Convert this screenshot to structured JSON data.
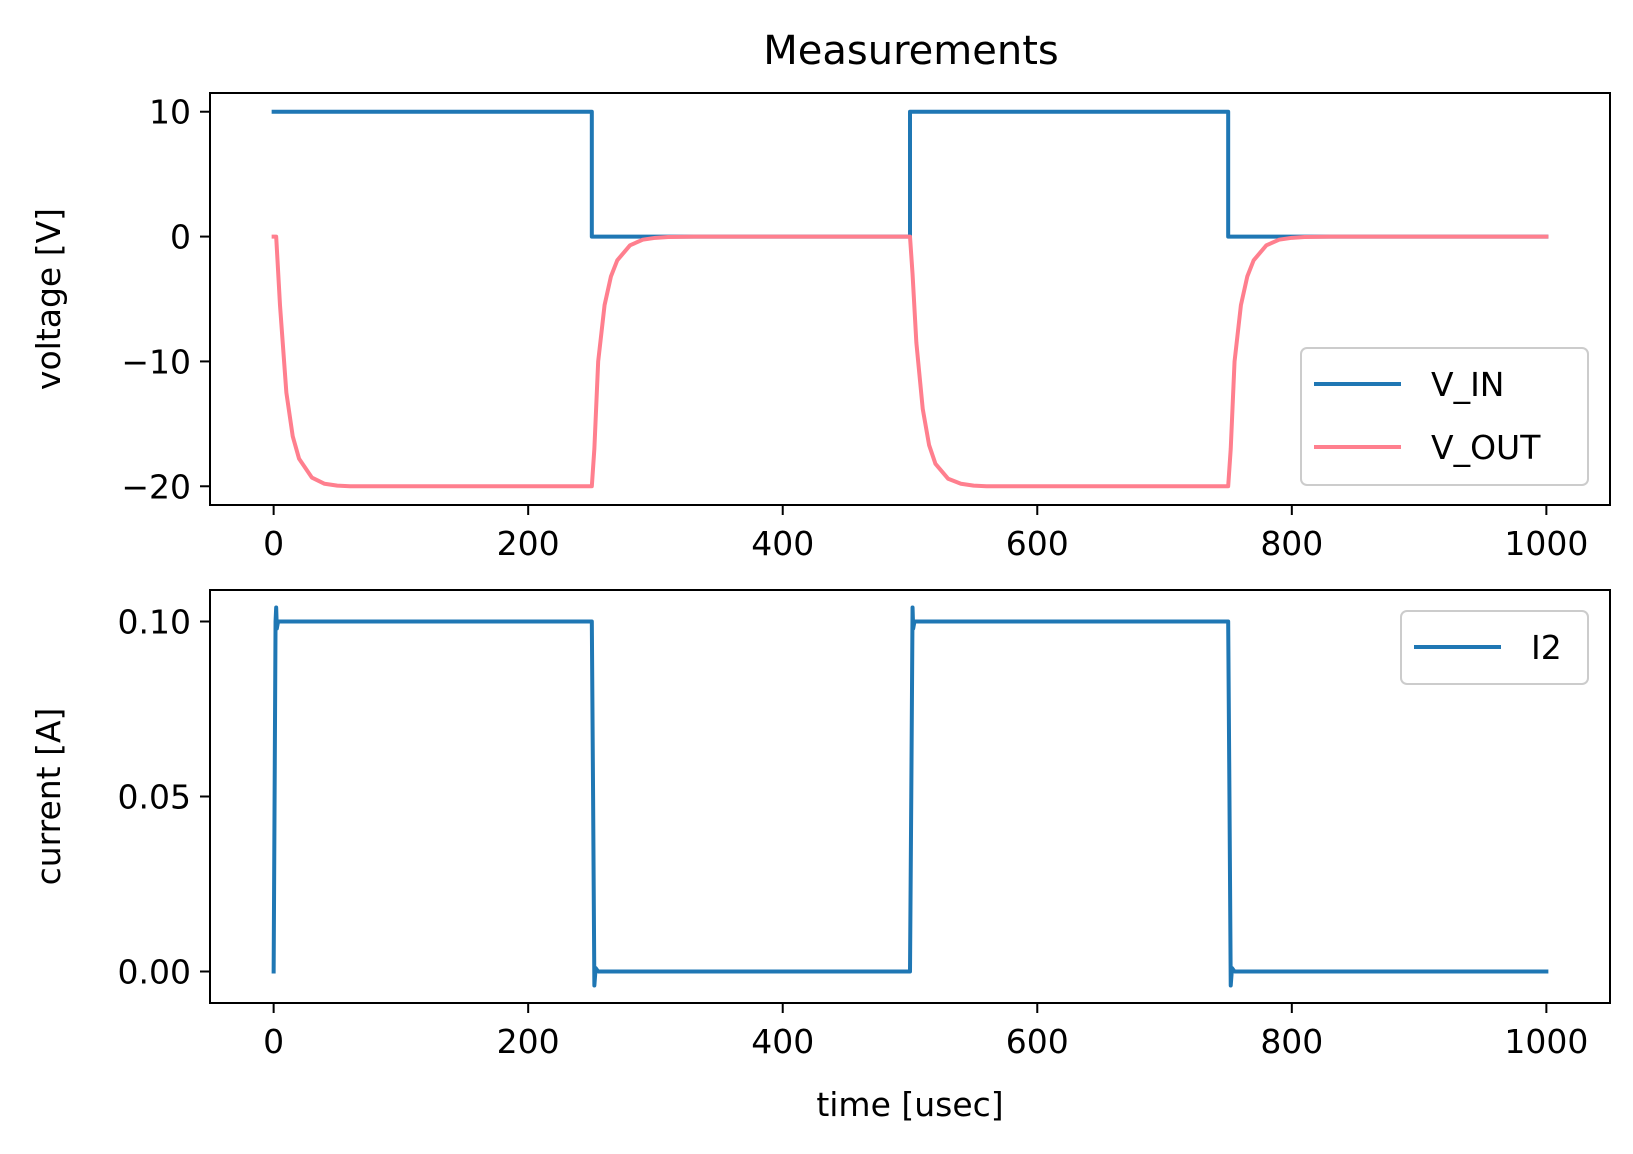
{
  "title": "Measurements",
  "chart_data": [
    {
      "type": "line",
      "xlabel": "",
      "ylabel": "voltage [V]",
      "xlim": [
        -50,
        1050
      ],
      "ylim": [
        -21.5,
        11.5
      ],
      "xticks": [
        0,
        200,
        400,
        600,
        800,
        1000
      ],
      "xtick_labels": [
        "0",
        "200",
        "400",
        "600",
        "800",
        "1000"
      ],
      "yticks": [
        10,
        0,
        -10,
        -20
      ],
      "ytick_labels": [
        "10",
        "0",
        "−10",
        "−20"
      ],
      "grid": false,
      "legend_position": "lower-right",
      "series": [
        {
          "name": "V_IN",
          "color": "#1f77b4",
          "x": [
            0,
            250,
            250,
            500,
            500,
            750,
            750,
            1000
          ],
          "y": [
            10,
            10,
            0,
            0,
            10,
            10,
            0,
            0
          ]
        },
        {
          "name": "V_OUT",
          "color": "#ff7f8e",
          "x": [
            0,
            2,
            5,
            10,
            15,
            20,
            30,
            40,
            50,
            60,
            80,
            250,
            252,
            255,
            260,
            265,
            270,
            280,
            290,
            300,
            310,
            330,
            500,
            502,
            505,
            510,
            515,
            520,
            530,
            540,
            550,
            560,
            580,
            750,
            752,
            755,
            760,
            765,
            770,
            780,
            790,
            800,
            810,
            830,
            1000
          ],
          "y": [
            0,
            0,
            -5.5,
            -12.5,
            -16,
            -17.8,
            -19.3,
            -19.8,
            -19.95,
            -20,
            -20,
            -20,
            -17,
            -10,
            -5.5,
            -3.2,
            -1.9,
            -0.7,
            -0.25,
            -0.1,
            -0.03,
            0,
            0,
            -3,
            -8.5,
            -13.8,
            -16.7,
            -18.2,
            -19.4,
            -19.8,
            -19.95,
            -20,
            -20,
            -20,
            -17,
            -10,
            -5.5,
            -3.2,
            -1.9,
            -0.7,
            -0.25,
            -0.1,
            -0.03,
            0,
            0
          ]
        }
      ]
    },
    {
      "type": "line",
      "xlabel": "time [usec]",
      "ylabel": "current [A]",
      "xlim": [
        -50,
        1050
      ],
      "ylim": [
        -0.009,
        0.109
      ],
      "xticks": [
        0,
        200,
        400,
        600,
        800,
        1000
      ],
      "xtick_labels": [
        "0",
        "200",
        "400",
        "600",
        "800",
        "1000"
      ],
      "yticks": [
        0.1,
        0.05,
        0.0
      ],
      "ytick_labels": [
        "0.10",
        "0.05",
        "0.00"
      ],
      "grid": false,
      "legend_position": "upper-right",
      "series": [
        {
          "name": "I2",
          "color": "#1f77b4",
          "x": [
            0,
            1.5,
            2,
            2.5,
            3.5,
            250,
            251,
            252,
            253,
            255,
            500,
            501,
            502,
            502.5,
            503.5,
            750,
            751,
            752,
            753,
            755,
            1000
          ],
          "y": [
            0,
            0.1,
            0.104,
            0.098,
            0.1,
            0.1,
            0.05,
            -0.004,
            0.001,
            0,
            0,
            0.05,
            0.104,
            0.098,
            0.1,
            0.1,
            0.05,
            -0.004,
            0.001,
            0,
            0
          ]
        }
      ]
    }
  ]
}
